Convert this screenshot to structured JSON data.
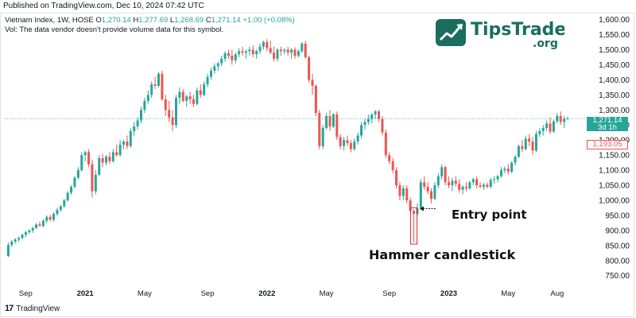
{
  "header": {
    "published": "Published on TradingView.com, Dec 10, 2024 07:42 UTC",
    "symbol": "Vietnam Index, 1W, HOSE",
    "open_label": "O",
    "open": "1,270.14",
    "high_label": "H",
    "high": "1,277.69",
    "low_label": "L",
    "low": "1,268.69",
    "close_label": "C",
    "close": "1,271.14",
    "change": "+1.00 (+0.08%)",
    "volume_note": "Vol: The data vendor doesn't provide volume data for this symbol."
  },
  "watermark": {
    "brand": "TipsTrade",
    "suffix": ".org"
  },
  "footer": {
    "logo_text": "17",
    "brand": "TradingView"
  },
  "annotations": {
    "entry": "Entry point",
    "hammer": "Hammer candlestick"
  },
  "price_tags": {
    "current": "1,271.14",
    "countdown": "3d 1h",
    "previous": "1,193.05"
  },
  "colors": {
    "up": "#26a69a",
    "down": "#ef5350",
    "axis_text": "#131722",
    "teal_line": "#26a69a"
  },
  "chart_data": {
    "type": "candlestick",
    "title": "Vietnam Index, 1W, HOSE",
    "ylim": [
      715,
      1620
    ],
    "y_ticks": [
      750,
      800,
      850,
      900,
      950,
      1000,
      1050,
      1100,
      1150,
      1200,
      1250,
      1300,
      1350,
      1400,
      1450,
      1500,
      1550,
      1600
    ],
    "y_tick_labels": [
      "750.00",
      "800.00",
      "850.00",
      "900.00",
      "950.00",
      "1,000.00",
      "1,050.00",
      "1,100.00",
      "1,150.00",
      "1,200.00",
      "1,250.00",
      "1,300.00",
      "1,350.00",
      "1,400.00",
      "1,450.00",
      "1,500.00",
      "1,550.00",
      "1,600.00"
    ],
    "x_ticks": [
      {
        "label": "Sep",
        "week": 6
      },
      {
        "label": "2021",
        "week": 23
      },
      {
        "label": "May",
        "week": 40
      },
      {
        "label": "Sep",
        "week": 58
      },
      {
        "label": "2022",
        "week": 75
      },
      {
        "label": "May",
        "week": 92
      },
      {
        "label": "Sep",
        "week": 110
      },
      {
        "label": "2023",
        "week": 127
      },
      {
        "label": "May",
        "week": 144
      },
      {
        "label": "Aug",
        "week": 158
      }
    ],
    "x_range": [
      0,
      166
    ],
    "candles": [
      [
        1,
        815,
        860,
        812,
        852
      ],
      [
        2,
        852,
        868,
        845,
        863
      ],
      [
        3,
        863,
        875,
        856,
        870
      ],
      [
        4,
        870,
        880,
        862,
        875
      ],
      [
        5,
        875,
        889,
        870,
        886
      ],
      [
        6,
        886,
        899,
        878,
        894
      ],
      [
        7,
        894,
        904,
        888,
        900
      ],
      [
        8,
        900,
        912,
        892,
        908
      ],
      [
        9,
        908,
        925,
        905,
        920
      ],
      [
        10,
        920,
        930,
        912,
        915
      ],
      [
        11,
        915,
        938,
        910,
        932
      ],
      [
        12,
        932,
        950,
        925,
        945
      ],
      [
        13,
        945,
        952,
        930,
        936
      ],
      [
        14,
        936,
        960,
        930,
        955
      ],
      [
        15,
        955,
        975,
        948,
        968
      ],
      [
        16,
        968,
        985,
        962,
        980
      ],
      [
        17,
        980,
        1005,
        975,
        1000
      ],
      [
        18,
        1000,
        1030,
        995,
        1025
      ],
      [
        19,
        1025,
        1050,
        1018,
        1045
      ],
      [
        20,
        1045,
        1080,
        1040,
        1075
      ],
      [
        21,
        1075,
        1110,
        1070,
        1100
      ],
      [
        22,
        1100,
        1160,
        1095,
        1150
      ],
      [
        23,
        1150,
        1165,
        1130,
        1160
      ],
      [
        24,
        1160,
        1170,
        1110,
        1120
      ],
      [
        25,
        1120,
        1135,
        1010,
        1030
      ],
      [
        26,
        1030,
        1100,
        1020,
        1085
      ],
      [
        27,
        1085,
        1150,
        1080,
        1140
      ],
      [
        28,
        1140,
        1155,
        1110,
        1125
      ],
      [
        29,
        1125,
        1150,
        1115,
        1145
      ],
      [
        30,
        1145,
        1160,
        1120,
        1130
      ],
      [
        31,
        1130,
        1170,
        1125,
        1160
      ],
      [
        32,
        1160,
        1185,
        1145,
        1150
      ],
      [
        33,
        1150,
        1200,
        1145,
        1185
      ],
      [
        34,
        1185,
        1200,
        1170,
        1195
      ],
      [
        35,
        1195,
        1215,
        1170,
        1180
      ],
      [
        36,
        1180,
        1240,
        1175,
        1230
      ],
      [
        37,
        1230,
        1260,
        1215,
        1245
      ],
      [
        38,
        1245,
        1275,
        1235,
        1265
      ],
      [
        39,
        1265,
        1310,
        1255,
        1300
      ],
      [
        40,
        1300,
        1340,
        1290,
        1330
      ],
      [
        41,
        1330,
        1365,
        1320,
        1350
      ],
      [
        42,
        1350,
        1395,
        1340,
        1385
      ],
      [
        43,
        1385,
        1410,
        1370,
        1380
      ],
      [
        44,
        1380,
        1425,
        1375,
        1420
      ],
      [
        45,
        1420,
        1430,
        1330,
        1335
      ],
      [
        46,
        1335,
        1350,
        1280,
        1300
      ],
      [
        47,
        1300,
        1330,
        1260,
        1275
      ],
      [
        48,
        1275,
        1300,
        1230,
        1250
      ],
      [
        49,
        1250,
        1350,
        1240,
        1340
      ],
      [
        50,
        1340,
        1375,
        1320,
        1360
      ],
      [
        51,
        1360,
        1370,
        1325,
        1330
      ],
      [
        52,
        1330,
        1350,
        1310,
        1345
      ],
      [
        53,
        1345,
        1360,
        1320,
        1335
      ],
      [
        54,
        1335,
        1350,
        1310,
        1320
      ],
      [
        55,
        1320,
        1375,
        1315,
        1365
      ],
      [
        56,
        1365,
        1385,
        1340,
        1350
      ],
      [
        57,
        1350,
        1395,
        1345,
        1385
      ],
      [
        58,
        1385,
        1420,
        1375,
        1410
      ],
      [
        59,
        1410,
        1440,
        1400,
        1430
      ],
      [
        60,
        1430,
        1455,
        1420,
        1445
      ],
      [
        61,
        1445,
        1460,
        1430,
        1455
      ],
      [
        62,
        1455,
        1480,
        1445,
        1470
      ],
      [
        63,
        1470,
        1495,
        1460,
        1488
      ],
      [
        64,
        1488,
        1500,
        1470,
        1480
      ],
      [
        65,
        1480,
        1500,
        1450,
        1465
      ],
      [
        66,
        1465,
        1490,
        1455,
        1485
      ],
      [
        67,
        1485,
        1505,
        1475,
        1495
      ],
      [
        68,
        1495,
        1510,
        1480,
        1490
      ],
      [
        69,
        1490,
        1500,
        1470,
        1495
      ],
      [
        70,
        1495,
        1510,
        1480,
        1500
      ],
      [
        71,
        1500,
        1515,
        1475,
        1485
      ],
      [
        72,
        1485,
        1500,
        1470,
        1495
      ],
      [
        73,
        1495,
        1520,
        1485,
        1510
      ],
      [
        74,
        1510,
        1530,
        1500,
        1525
      ],
      [
        75,
        1525,
        1535,
        1495,
        1505
      ],
      [
        76,
        1505,
        1530,
        1485,
        1490
      ],
      [
        77,
        1490,
        1510,
        1460,
        1470
      ],
      [
        78,
        1470,
        1505,
        1460,
        1500
      ],
      [
        79,
        1500,
        1510,
        1480,
        1495
      ],
      [
        80,
        1495,
        1505,
        1485,
        1500
      ],
      [
        81,
        1500,
        1510,
        1480,
        1490
      ],
      [
        82,
        1490,
        1505,
        1470,
        1500
      ],
      [
        83,
        1500,
        1508,
        1470,
        1480
      ],
      [
        84,
        1480,
        1500,
        1475,
        1495
      ],
      [
        85,
        1495,
        1525,
        1490,
        1520
      ],
      [
        86,
        1520,
        1530,
        1470,
        1475
      ],
      [
        87,
        1475,
        1480,
        1390,
        1400
      ],
      [
        88,
        1400,
        1420,
        1350,
        1380
      ],
      [
        89,
        1380,
        1385,
        1280,
        1290
      ],
      [
        90,
        1290,
        1300,
        1170,
        1180
      ],
      [
        91,
        1180,
        1250,
        1170,
        1240
      ],
      [
        92,
        1240,
        1290,
        1235,
        1280
      ],
      [
        93,
        1280,
        1300,
        1230,
        1245
      ],
      [
        94,
        1245,
        1290,
        1240,
        1285
      ],
      [
        95,
        1285,
        1295,
        1200,
        1210
      ],
      [
        96,
        1210,
        1220,
        1170,
        1180
      ],
      [
        97,
        1180,
        1210,
        1165,
        1200
      ],
      [
        98,
        1200,
        1215,
        1180,
        1190
      ],
      [
        99,
        1190,
        1200,
        1160,
        1170
      ],
      [
        100,
        1170,
        1205,
        1165,
        1195
      ],
      [
        101,
        1195,
        1225,
        1185,
        1215
      ],
      [
        102,
        1215,
        1260,
        1205,
        1250
      ],
      [
        103,
        1250,
        1270,
        1235,
        1260
      ],
      [
        104,
        1260,
        1285,
        1250,
        1270
      ],
      [
        105,
        1270,
        1290,
        1255,
        1285
      ],
      [
        106,
        1285,
        1300,
        1270,
        1295
      ],
      [
        107,
        1295,
        1300,
        1260,
        1270
      ],
      [
        108,
        1270,
        1280,
        1215,
        1225
      ],
      [
        109,
        1225,
        1235,
        1140,
        1150
      ],
      [
        110,
        1150,
        1160,
        1120,
        1130
      ],
      [
        111,
        1130,
        1140,
        1090,
        1100
      ],
      [
        112,
        1100,
        1110,
        1040,
        1050
      ],
      [
        113,
        1050,
        1060,
        1000,
        1015
      ],
      [
        114,
        1015,
        1050,
        1000,
        1040
      ],
      [
        115,
        1040,
        1050,
        990,
        1000
      ],
      [
        116,
        1000,
        1010,
        960,
        965
      ],
      [
        117,
        965,
        970,
        860,
        955
      ],
      [
        118,
        955,
        990,
        945,
        975
      ],
      [
        119,
        975,
        1070,
        970,
        1060
      ],
      [
        120,
        1060,
        1080,
        1035,
        1045
      ],
      [
        121,
        1045,
        1060,
        1020,
        1030
      ],
      [
        122,
        1030,
        1040,
        990,
        1005
      ],
      [
        123,
        1005,
        1060,
        1000,
        1050
      ],
      [
        124,
        1050,
        1090,
        1040,
        1080
      ],
      [
        125,
        1080,
        1120,
        1070,
        1110
      ],
      [
        126,
        1110,
        1115,
        1050,
        1060
      ],
      [
        127,
        1060,
        1080,
        1040,
        1050
      ],
      [
        128,
        1050,
        1075,
        1030,
        1065
      ],
      [
        129,
        1065,
        1080,
        1045,
        1055
      ],
      [
        130,
        1055,
        1070,
        1025,
        1035
      ],
      [
        131,
        1035,
        1050,
        1020,
        1045
      ],
      [
        132,
        1045,
        1060,
        1030,
        1040
      ],
      [
        133,
        1040,
        1065,
        1035,
        1060
      ],
      [
        134,
        1060,
        1075,
        1050,
        1070
      ],
      [
        135,
        1070,
        1080,
        1040,
        1050
      ],
      [
        136,
        1050,
        1060,
        1040,
        1045
      ],
      [
        137,
        1045,
        1058,
        1035,
        1052
      ],
      [
        138,
        1052,
        1060,
        1040,
        1045
      ],
      [
        139,
        1045,
        1075,
        1040,
        1068
      ],
      [
        140,
        1068,
        1080,
        1055,
        1070
      ],
      [
        141,
        1070,
        1085,
        1060,
        1080
      ],
      [
        142,
        1080,
        1110,
        1075,
        1100
      ],
      [
        143,
        1100,
        1112,
        1090,
        1105
      ],
      [
        144,
        1105,
        1120,
        1085,
        1095
      ],
      [
        145,
        1095,
        1130,
        1090,
        1125
      ],
      [
        146,
        1125,
        1150,
        1115,
        1145
      ],
      [
        147,
        1145,
        1185,
        1140,
        1180
      ],
      [
        148,
        1180,
        1200,
        1160,
        1170
      ],
      [
        149,
        1170,
        1215,
        1165,
        1205
      ],
      [
        150,
        1205,
        1220,
        1180,
        1195
      ],
      [
        151,
        1195,
        1210,
        1150,
        1165
      ],
      [
        152,
        1165,
        1230,
        1160,
        1220
      ],
      [
        153,
        1220,
        1240,
        1210,
        1230
      ],
      [
        154,
        1230,
        1250,
        1215,
        1240
      ],
      [
        155,
        1240,
        1265,
        1230,
        1255
      ],
      [
        156,
        1255,
        1275,
        1220,
        1228
      ],
      [
        157,
        1228,
        1268,
        1225,
        1262
      ],
      [
        158,
        1262,
        1290,
        1255,
        1280
      ],
      [
        159,
        1280,
        1295,
        1250,
        1260
      ],
      [
        160,
        1260,
        1280,
        1240,
        1270
      ],
      [
        161,
        1270,
        1278,
        1268,
        1271
      ]
    ]
  }
}
